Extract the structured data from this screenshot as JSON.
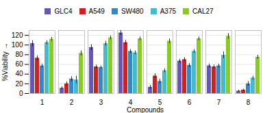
{
  "chart_data": {
    "type": "bar",
    "xlabel": "Compounds",
    "ylabel": "%Viability",
    "categories": [
      "1",
      "2",
      "3",
      "4",
      "5",
      "6",
      "7",
      "8"
    ],
    "series": [
      {
        "name": "GLC4",
        "color": "#6655bb",
        "values": [
          103,
          11,
          95,
          125,
          13,
          67,
          57,
          5
        ],
        "errors": [
          6,
          3,
          6,
          5,
          4,
          4,
          4,
          2
        ]
      },
      {
        "name": "A549",
        "color": "#cc2222",
        "values": [
          73,
          20,
          55,
          105,
          36,
          70,
          55,
          7
        ],
        "errors": [
          5,
          4,
          4,
          5,
          5,
          4,
          4,
          2
        ]
      },
      {
        "name": "SW480",
        "color": "#3388cc",
        "values": [
          57,
          30,
          54,
          87,
          25,
          58,
          57,
          20
        ],
        "errors": [
          4,
          5,
          3,
          4,
          5,
          4,
          4,
          5
        ]
      },
      {
        "name": "A375",
        "color": "#44bbcc",
        "values": [
          105,
          28,
          103,
          84,
          47,
          87,
          79,
          32
        ],
        "errors": [
          4,
          8,
          5,
          4,
          4,
          4,
          7,
          4
        ]
      },
      {
        "name": "CAL27",
        "color": "#88cc22",
        "values": [
          112,
          83,
          115,
          113,
          108,
          113,
          118,
          75
        ],
        "errors": [
          4,
          5,
          4,
          4,
          5,
          4,
          6,
          4
        ]
      }
    ],
    "ylim": [
      0,
      130
    ],
    "yticks": [
      0,
      20,
      40,
      60,
      80,
      100,
      120
    ],
    "grid": true,
    "legend": "upper center"
  }
}
